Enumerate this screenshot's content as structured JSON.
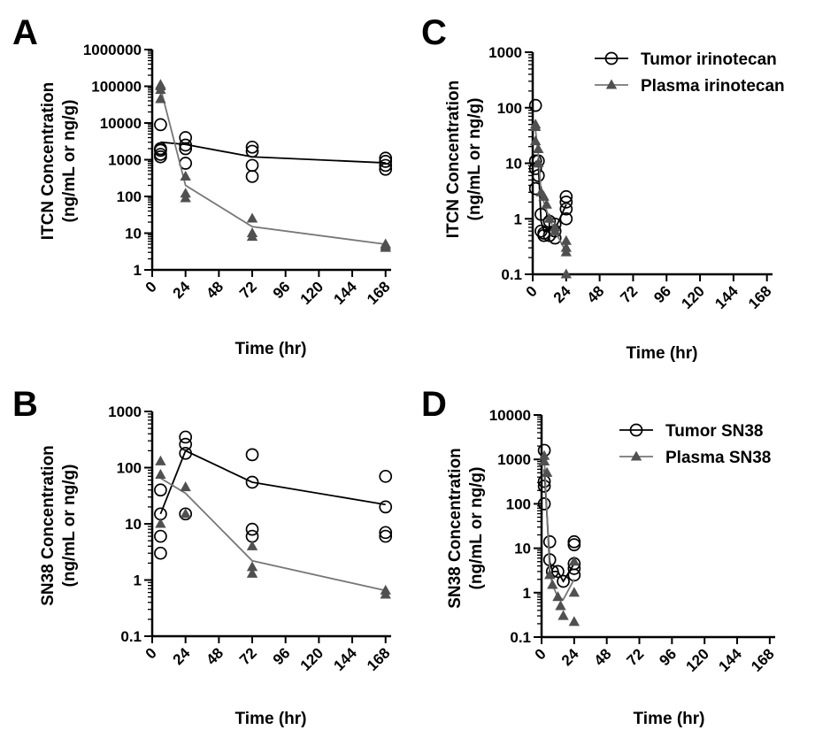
{
  "chart_data": [
    {
      "panel": "A",
      "type": "scatter",
      "xlabel": "Time (hr)",
      "ylabel_lines": [
        "ITCN Concentration",
        "(ng/mL or ng/g)"
      ],
      "yscale": "log",
      "xlim": [
        0,
        172
      ],
      "ylim": [
        1,
        1000000
      ],
      "xticks": [
        0,
        24,
        48,
        72,
        96,
        120,
        144,
        168
      ],
      "yticks": [
        1,
        10,
        100,
        1000,
        10000,
        100000,
        1000000
      ],
      "ytick_labels": [
        "1",
        "10",
        "100",
        "1000",
        "10000",
        "100000",
        "1000000"
      ],
      "legend": [],
      "series": [
        {
          "name": "Tumor irinotecan",
          "marker": "open-circle",
          "color": "#000000",
          "points": [
            [
              6,
              1200
            ],
            [
              6,
              1400
            ],
            [
              6,
              1800
            ],
            [
              6,
              2000
            ],
            [
              6,
              9000
            ],
            [
              24,
              800
            ],
            [
              24,
              2000
            ],
            [
              24,
              2500
            ],
            [
              24,
              4000
            ],
            [
              72,
              350
            ],
            [
              72,
              700
            ],
            [
              72,
              1700
            ],
            [
              72,
              2200
            ],
            [
              168,
              550
            ],
            [
              168,
              700
            ],
            [
              168,
              900
            ],
            [
              168,
              1100
            ]
          ],
          "mean_line": [
            [
              6,
              3000
            ],
            [
              24,
              2600
            ],
            [
              72,
              1200
            ],
            [
              168,
              820
            ]
          ]
        },
        {
          "name": "Plasma irinotecan",
          "marker": "filled-triangle",
          "color": "#505050",
          "points": [
            [
              6,
              45000
            ],
            [
              6,
              80000
            ],
            [
              6,
              100000
            ],
            [
              6,
              110000
            ],
            [
              24,
              90
            ],
            [
              24,
              120
            ],
            [
              24,
              350
            ],
            [
              72,
              8
            ],
            [
              72,
              10
            ],
            [
              72,
              25
            ],
            [
              168,
              4
            ],
            [
              168,
              4.5
            ],
            [
              168,
              5
            ]
          ],
          "mean_line": [
            [
              6,
              90000
            ],
            [
              24,
              200
            ],
            [
              72,
              15
            ],
            [
              168,
              5
            ]
          ]
        }
      ]
    },
    {
      "panel": "C",
      "type": "scatter",
      "xlabel": "Time (hr)",
      "ylabel_lines": [
        "ITCN Concentration",
        "(ng/mL or ng/g)"
      ],
      "yscale": "log",
      "xlim": [
        0,
        172
      ],
      "ylim": [
        0.1,
        1000
      ],
      "xticks": [
        0,
        24,
        48,
        72,
        96,
        120,
        144,
        168
      ],
      "yticks": [
        0.1,
        1,
        10,
        100,
        1000
      ],
      "ytick_labels": [
        "0.1",
        "1",
        "10",
        "100",
        "1000"
      ],
      "legend": [
        "Tumor irinotecan",
        "Plasma irinotecan"
      ],
      "series": [
        {
          "name": "Tumor irinotecan",
          "marker": "open-circle",
          "color": "#000000",
          "points": [
            [
              2,
              110
            ],
            [
              2,
              11
            ],
            [
              2,
              8
            ],
            [
              2,
              3.5
            ],
            [
              4,
              11
            ],
            [
              4,
              6
            ],
            [
              6,
              1.2
            ],
            [
              6,
              0.6
            ],
            [
              8,
              0.5
            ],
            [
              8,
              0.55
            ],
            [
              12,
              0.5
            ],
            [
              12,
              0.9
            ],
            [
              16,
              0.45
            ],
            [
              16,
              0.6
            ],
            [
              16,
              0.8
            ],
            [
              24,
              1
            ],
            [
              24,
              1.5
            ],
            [
              24,
              2
            ],
            [
              24,
              2.5
            ]
          ],
          "mean_line": [
            [
              2,
              11
            ],
            [
              4,
              10
            ],
            [
              6,
              0.9
            ],
            [
              8,
              0.6
            ],
            [
              12,
              0.7
            ],
            [
              16,
              0.65
            ],
            [
              24,
              1.8
            ]
          ]
        },
        {
          "name": "Plasma irinotecan",
          "marker": "filled-triangle",
          "color": "#505050",
          "points": [
            [
              2,
              50
            ],
            [
              2,
              45
            ],
            [
              2,
              25
            ],
            [
              4,
              18
            ],
            [
              4,
              10
            ],
            [
              6,
              3
            ],
            [
              8,
              2.5
            ],
            [
              10,
              1.8
            ],
            [
              12,
              1
            ],
            [
              16,
              0.7
            ],
            [
              16,
              0.6
            ],
            [
              24,
              0.4
            ],
            [
              24,
              0.3
            ],
            [
              24,
              0.25
            ],
            [
              24,
              0.1
            ]
          ],
          "mean_line": [
            [
              2,
              40
            ],
            [
              4,
              14
            ],
            [
              6,
              3
            ],
            [
              8,
              2
            ],
            [
              12,
              1
            ],
            [
              16,
              0.6
            ],
            [
              24,
              0.25
            ]
          ]
        }
      ]
    },
    {
      "panel": "B",
      "type": "scatter",
      "xlabel": "Time (hr)",
      "ylabel_lines": [
        "SN38 Concentration",
        "(ng/mL or ng/g)"
      ],
      "yscale": "log",
      "xlim": [
        0,
        172
      ],
      "ylim": [
        0.1,
        1000
      ],
      "xticks": [
        0,
        24,
        48,
        72,
        96,
        120,
        144,
        168
      ],
      "yticks": [
        0.1,
        1,
        10,
        100,
        1000
      ],
      "ytick_labels": [
        "0.1",
        "1",
        "10",
        "100",
        "1000"
      ],
      "legend": [],
      "series": [
        {
          "name": "Tumor SN38",
          "marker": "open-circle",
          "color": "#000000",
          "points": [
            [
              6,
              3
            ],
            [
              6,
              6
            ],
            [
              6,
              15
            ],
            [
              6,
              40
            ],
            [
              24,
              15
            ],
            [
              24,
              180
            ],
            [
              24,
              260
            ],
            [
              24,
              350
            ],
            [
              72,
              6
            ],
            [
              72,
              8
            ],
            [
              72,
              55
            ],
            [
              72,
              170
            ],
            [
              168,
              6
            ],
            [
              168,
              7
            ],
            [
              168,
              20
            ],
            [
              168,
              70
            ]
          ],
          "mean_line": [
            [
              6,
              15
            ],
            [
              24,
              200
            ],
            [
              72,
              55
            ],
            [
              168,
              22
            ]
          ]
        },
        {
          "name": "Plasma SN38",
          "marker": "filled-triangle",
          "color": "#505050",
          "points": [
            [
              6,
              10
            ],
            [
              6,
              75
            ],
            [
              6,
              130
            ],
            [
              24,
              15
            ],
            [
              24,
              45
            ],
            [
              72,
              1.3
            ],
            [
              72,
              1.7
            ],
            [
              72,
              4
            ],
            [
              168,
              0.55
            ],
            [
              168,
              0.65
            ]
          ],
          "mean_line": [
            [
              6,
              65
            ],
            [
              24,
              35
            ],
            [
              72,
              2.2
            ],
            [
              168,
              0.65
            ]
          ]
        }
      ]
    },
    {
      "panel": "D",
      "type": "scatter",
      "xlabel": "Time (hr)",
      "ylabel_lines": [
        "SN38 Concentration",
        "(ng/mL or ng/g)"
      ],
      "yscale": "log",
      "xlim": [
        0,
        172
      ],
      "ylim": [
        0.1,
        10000
      ],
      "xticks": [
        0,
        24,
        48,
        72,
        96,
        120,
        144,
        168
      ],
      "yticks": [
        0.1,
        1,
        10,
        100,
        1000,
        10000
      ],
      "ytick_labels": [
        "0.1",
        "1",
        "10",
        "100",
        "1000",
        "10000"
      ],
      "legend": [
        "Tumor SN38",
        "Plasma SN38"
      ],
      "series": [
        {
          "name": "Tumor SN38",
          "marker": "open-circle",
          "color": "#000000",
          "points": [
            [
              2,
              1600
            ],
            [
              2,
              320
            ],
            [
              2,
              250
            ],
            [
              2,
              100
            ],
            [
              6,
              14
            ],
            [
              6,
              5.5
            ],
            [
              8,
              3
            ],
            [
              12,
              3
            ],
            [
              16,
              1.8
            ],
            [
              24,
              14
            ],
            [
              24,
              12
            ],
            [
              24,
              4.5
            ],
            [
              24,
              3.5
            ],
            [
              24,
              2.5
            ]
          ],
          "mean_line": [
            [
              2,
              600
            ],
            [
              6,
              5
            ],
            [
              8,
              3
            ],
            [
              12,
              3
            ],
            [
              16,
              1.8
            ],
            [
              24,
              4.5
            ]
          ]
        },
        {
          "name": "Plasma SN38",
          "marker": "filled-triangle",
          "color": "#505050",
          "points": [
            [
              2,
              1200
            ],
            [
              2,
              900
            ],
            [
              4,
              500
            ],
            [
              6,
              2.5
            ],
            [
              8,
              1.5
            ],
            [
              12,
              0.8
            ],
            [
              14,
              0.5
            ],
            [
              16,
              0.3
            ],
            [
              24,
              5
            ],
            [
              24,
              1
            ],
            [
              24,
              0.22
            ]
          ],
          "mean_line": [
            [
              2,
              1100
            ],
            [
              6,
              3
            ],
            [
              8,
              1.5
            ],
            [
              12,
              0.8
            ],
            [
              16,
              0.7
            ],
            [
              24,
              2
            ]
          ]
        }
      ]
    }
  ]
}
